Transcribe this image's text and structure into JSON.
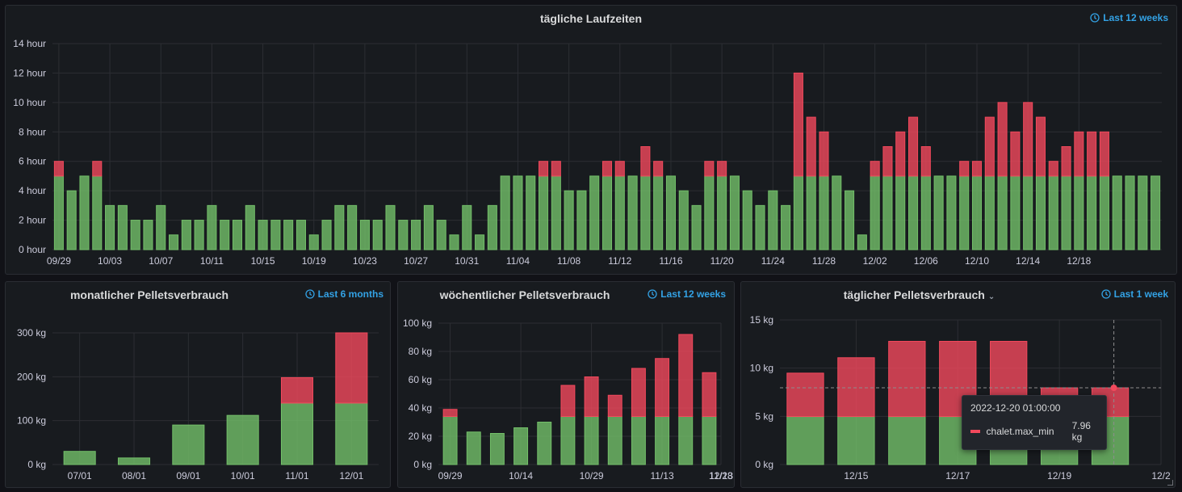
{
  "colors": {
    "green": "#73bf69",
    "red": "#f2495c",
    "grid": "#2c2e33",
    "accent": "#33a2e5"
  },
  "panels": [
    {
      "id": "p1",
      "title": "tägliche Laufzeiten",
      "time_range": "Last 12 weeks",
      "chart_data": {
        "type": "bar",
        "stacked": true,
        "y_ticks": [
          "0 hour",
          "2 hour",
          "4 hour",
          "6 hour",
          "8 hour",
          "10 hour",
          "12 hour",
          "14 hour"
        ],
        "ylim": [
          0,
          14
        ],
        "x_tick_labels": [
          "09/29",
          "10/03",
          "10/07",
          "10/11",
          "10/15",
          "10/19",
          "10/23",
          "10/27",
          "10/31",
          "11/04",
          "11/08",
          "11/12",
          "11/16",
          "11/20",
          "11/24",
          "11/28",
          "12/02",
          "12/06",
          "12/10",
          "12/14",
          "12/18"
        ],
        "series": [
          {
            "color": "green",
            "values": [
              5,
              4,
              5,
              5,
              3,
              3,
              2,
              2,
              3,
              1,
              2,
              2,
              3,
              2,
              2,
              3,
              2,
              2,
              2,
              2,
              1,
              2,
              3,
              3,
              2,
              2,
              3,
              2,
              2,
              3,
              2,
              1,
              3,
              1,
              3,
              5,
              5,
              5,
              5,
              5,
              4,
              4,
              5,
              5,
              5,
              5,
              5,
              5,
              5,
              4,
              3,
              5,
              5,
              5,
              4,
              3,
              4,
              3,
              5,
              5,
              5,
              5,
              4,
              1,
              5,
              5,
              5,
              5,
              5,
              5,
              5,
              5,
              5,
              5,
              5,
              5,
              5,
              5,
              5,
              5,
              5,
              5,
              5,
              5,
              5,
              5,
              5
            ]
          },
          {
            "color": "red",
            "values": [
              1,
              0,
              0,
              1,
              0,
              0,
              0,
              0,
              0,
              0,
              0,
              0,
              0,
              0,
              0,
              0,
              0,
              0,
              0,
              0,
              0,
              0,
              0,
              0,
              0,
              0,
              0,
              0,
              0,
              0,
              0,
              0,
              0,
              0,
              0,
              0,
              0,
              0,
              1,
              1,
              0,
              0,
              0,
              1,
              1,
              0,
              2,
              1,
              0,
              0,
              0,
              1,
              1,
              0,
              0,
              0,
              0,
              0,
              7,
              4,
              3,
              0,
              0,
              0,
              1,
              2,
              3,
              4,
              2,
              0,
              0,
              1,
              1,
              4,
              5,
              3,
              5,
              4,
              1,
              2,
              3,
              3,
              3,
              0,
              0,
              0,
              0
            ]
          }
        ]
      }
    },
    {
      "id": "p2",
      "title": "monatlicher Pelletsverbrauch",
      "time_range": "Last 6 months",
      "chart_data": {
        "type": "bar",
        "stacked": true,
        "y_ticks": [
          "0 kg",
          "100 kg",
          "200 kg",
          "300 kg"
        ],
        "ylim": [
          0,
          300
        ],
        "categories": [
          "07/01",
          "08/01",
          "09/01",
          "10/01",
          "11/01",
          "12/01"
        ],
        "series": [
          {
            "color": "green",
            "values": [
              30,
              15,
              90,
              112,
              140,
              140
            ]
          },
          {
            "color": "red",
            "values": [
              0,
              0,
              0,
              0,
              58,
              160
            ]
          }
        ]
      }
    },
    {
      "id": "p3",
      "title": "wöchentlicher Pelletsverbrauch",
      "time_range": "Last 12 weeks",
      "chart_data": {
        "type": "bar",
        "stacked": true,
        "y_ticks": [
          "0 kg",
          "20 kg",
          "40 kg",
          "60 kg",
          "80 kg",
          "100 kg"
        ],
        "ylim": [
          0,
          100
        ],
        "x_tick_labels": [
          "09/29",
          "10/14",
          "10/29",
          "11/13",
          "11/28",
          "12/13"
        ],
        "series": [
          {
            "color": "green",
            "values": [
              34,
              23,
              22,
              26,
              30,
              34,
              34,
              34,
              34,
              34,
              34,
              34
            ]
          },
          {
            "color": "red",
            "values": [
              5,
              0,
              0,
              0,
              0,
              22,
              28,
              15,
              34,
              41,
              58,
              31
            ]
          }
        ]
      }
    },
    {
      "id": "p4",
      "title": "täglicher Pelletsverbrauch",
      "title_chevron": "⌄",
      "time_range": "Last 1 week",
      "chart_data": {
        "type": "bar",
        "stacked": true,
        "y_ticks": [
          "0 kg",
          "5 kg",
          "10 kg",
          "15 kg"
        ],
        "ylim": [
          0,
          15
        ],
        "x_tick_labels": [
          "12/15",
          "12/17",
          "12/19",
          "12/2"
        ],
        "series": [
          {
            "color": "green",
            "values": [
              4.98,
              4.98,
              4.98,
              4.98,
              4.98,
              4.98,
              4.98
            ]
          },
          {
            "color": "red",
            "values": [
              4.5,
              6.1,
              7.8,
              7.8,
              7.8,
              2.98,
              2.98
            ]
          }
        ]
      },
      "tooltip": {
        "time": "2022-12-20 01:00:00",
        "series": "chalet.max_min",
        "value": "7.96 kg"
      }
    }
  ]
}
